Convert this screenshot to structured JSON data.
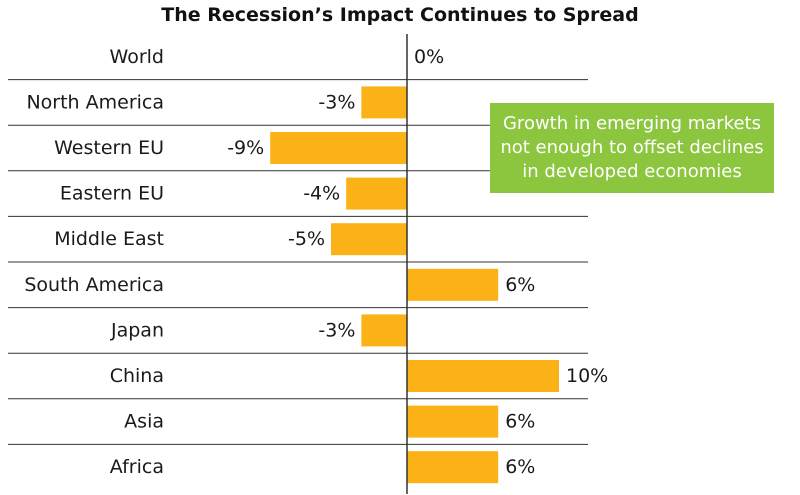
{
  "chart_data": {
    "type": "bar",
    "orientation": "horizontal",
    "title": "The Recession’s Impact Continues to Spread",
    "categories": [
      "World",
      "North America",
      "Western EU",
      "Eastern EU",
      "Middle East",
      "South America",
      "Japan",
      "China",
      "Asia",
      "Africa"
    ],
    "values": [
      0,
      -3,
      -9,
      -4,
      -5,
      6,
      -3,
      10,
      6,
      6
    ],
    "value_labels": [
      "0%",
      "-3%",
      "-9%",
      "-4%",
      "-5%",
      "6%",
      "-3%",
      "10%",
      "6%",
      "6%"
    ],
    "xlim": [
      -11,
      12
    ],
    "grid": "horizontal separators",
    "bar_color": "#fbb217",
    "annotation": "Growth in emerging markets not enough to offset declines in developed economies"
  },
  "colors": {
    "bar": "#fbb217",
    "callout_bg": "#8cc63f",
    "callout_text": "#ffffff",
    "rule": "#333333"
  }
}
